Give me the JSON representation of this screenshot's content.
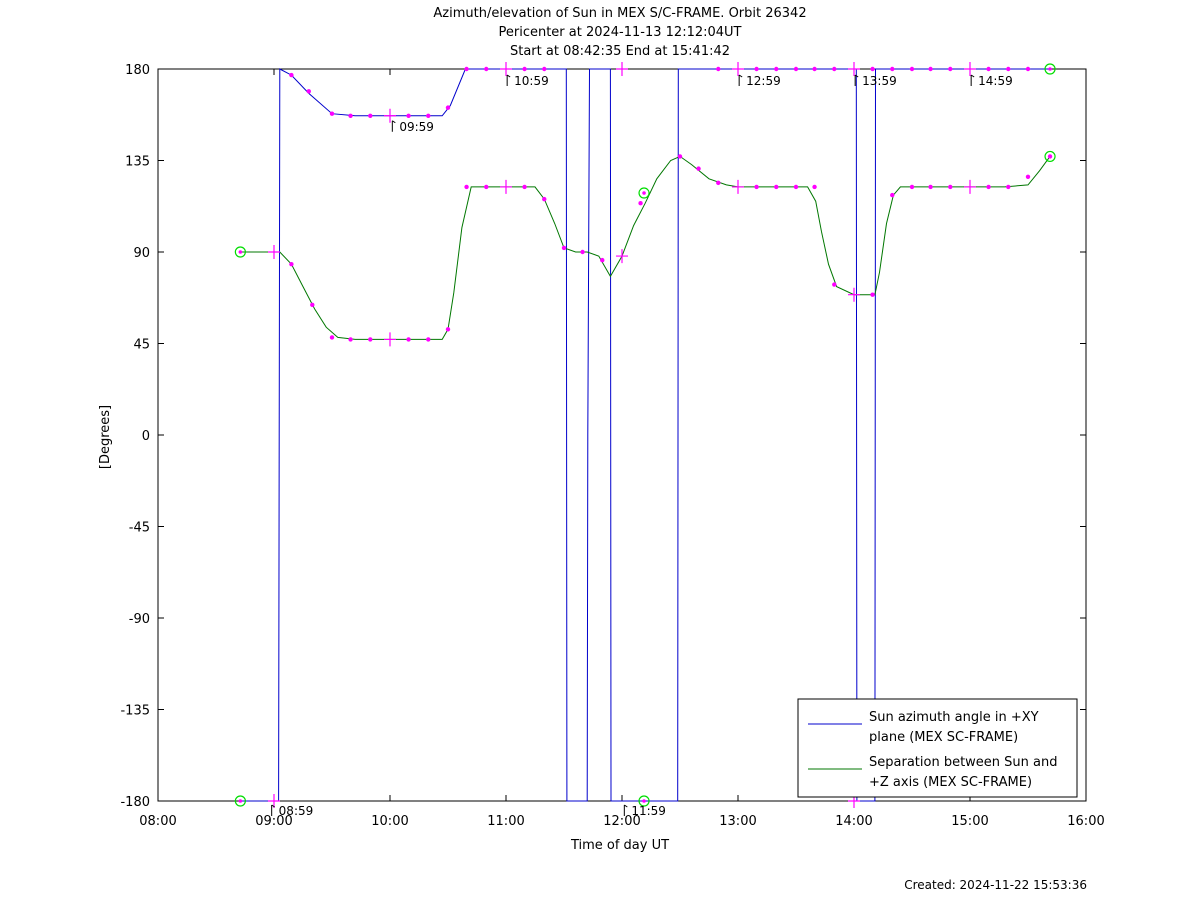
{
  "chart_data": {
    "type": "line",
    "title_lines": [
      "Azimuth/elevation of Sun in MEX S/C-FRAME.  Orbit 26342",
      "Pericenter at 2024-11-13 12:12:04UT",
      "Start at 08:42:35 End at 15:41:42"
    ],
    "xlabel": "Time of day UT",
    "ylabel": "[Degrees]",
    "x_units": "hours of day",
    "xlim": [
      8,
      16
    ],
    "ylim": [
      -180,
      180
    ],
    "x_tick_values": [
      8,
      9,
      10,
      11,
      12,
      13,
      14,
      15,
      16
    ],
    "x_tick_labels": [
      "08:00",
      "09:00",
      "10:00",
      "11:00",
      "12:00",
      "13:00",
      "14:00",
      "15:00",
      "16:00"
    ],
    "y_tick_values": [
      180,
      135,
      90,
      45,
      0,
      -45,
      -90,
      -135,
      -180
    ],
    "y_tick_labels": [
      "180",
      "135",
      "90",
      "45",
      "0",
      "-45",
      "-90",
      "-135",
      "-180"
    ],
    "legend_position": "bottom-right",
    "series": [
      {
        "name_lines": [
          "Sun azimuth angle in +XY",
          "plane (MEX SC-FRAME)"
        ],
        "color": "#0000cc",
        "x": [
          8.71,
          9.04,
          9.045,
          9.05,
          9.15,
          9.3,
          9.5,
          9.7,
          10.0,
          10.3,
          10.45,
          10.52,
          10.65,
          10.8,
          11.0,
          11.3,
          11.52,
          11.525,
          11.7,
          11.705,
          11.72,
          11.9,
          11.905,
          12.0,
          12.2,
          12.48,
          12.485,
          12.6,
          12.8,
          13.0,
          13.3,
          13.6,
          13.8,
          14.02,
          14.025,
          14.18,
          14.185,
          14.2,
          14.4,
          14.6,
          14.8,
          15.0,
          15.2,
          15.4,
          15.6,
          15.69
        ],
        "y": [
          -180,
          -180,
          0,
          180,
          177,
          168,
          158,
          157,
          157,
          157,
          157,
          162,
          180,
          180,
          180,
          180,
          180,
          -180,
          -180,
          0,
          180,
          180,
          -180,
          -180,
          -180,
          -180,
          180,
          180,
          180,
          180,
          180,
          180,
          180,
          180,
          -180,
          -180,
          180,
          180,
          180,
          180,
          180,
          180,
          180,
          180,
          180,
          180
        ]
      },
      {
        "name_lines": [
          "Separation between Sun and",
          "+Z axis (MEX SC-FRAME)"
        ],
        "color": "#007700",
        "x": [
          8.71,
          9.05,
          9.15,
          9.25,
          9.35,
          9.45,
          9.55,
          9.7,
          9.9,
          10.2,
          10.45,
          10.5,
          10.55,
          10.62,
          10.7,
          11.0,
          11.25,
          11.33,
          11.42,
          11.5,
          11.6,
          11.7,
          11.8,
          11.9,
          12.0,
          12.1,
          12.2,
          12.3,
          12.42,
          12.5,
          12.6,
          12.75,
          12.9,
          13.0,
          13.3,
          13.6,
          13.67,
          13.72,
          13.78,
          13.85,
          14.0,
          14.18,
          14.22,
          14.28,
          14.34,
          14.4,
          14.6,
          15.0,
          15.3,
          15.5,
          15.6,
          15.69
        ],
        "y": [
          90,
          90,
          84,
          73,
          62,
          53,
          48,
          47,
          47,
          47,
          47,
          52,
          70,
          102,
          122,
          122,
          122,
          116,
          104,
          92,
          90,
          90,
          88,
          78,
          88,
          103,
          114,
          126,
          135,
          137,
          133,
          126,
          123,
          122,
          122,
          122,
          115,
          100,
          84,
          73,
          69,
          69,
          80,
          104,
          118,
          122,
          122,
          122,
          122,
          123,
          130,
          137
        ]
      }
    ],
    "markers_circle": [
      {
        "x": 8.71,
        "y": 90
      },
      {
        "x": 8.71,
        "y": -180
      },
      {
        "x": 12.19,
        "y": 119
      },
      {
        "x": 12.19,
        "y": -180
      },
      {
        "x": 15.69,
        "y": 180
      },
      {
        "x": 15.69,
        "y": 137
      }
    ],
    "markers_dot": [
      {
        "x": 9.15,
        "y": 177
      },
      {
        "x": 9.3,
        "y": 169
      },
      {
        "x": 9.5,
        "y": 158
      },
      {
        "x": 9.66,
        "y": 157
      },
      {
        "x": 9.83,
        "y": 157
      },
      {
        "x": 10.16,
        "y": 157
      },
      {
        "x": 10.33,
        "y": 157
      },
      {
        "x": 10.5,
        "y": 161
      },
      {
        "x": 10.66,
        "y": 180
      },
      {
        "x": 10.83,
        "y": 180
      },
      {
        "x": 11.16,
        "y": 180
      },
      {
        "x": 11.33,
        "y": 180
      },
      {
        "x": 12.83,
        "y": 180
      },
      {
        "x": 13.16,
        "y": 180
      },
      {
        "x": 13.33,
        "y": 180
      },
      {
        "x": 13.5,
        "y": 180
      },
      {
        "x": 13.66,
        "y": 180
      },
      {
        "x": 13.83,
        "y": 180
      },
      {
        "x": 14.16,
        "y": 180
      },
      {
        "x": 14.33,
        "y": 180
      },
      {
        "x": 14.5,
        "y": 180
      },
      {
        "x": 14.66,
        "y": 180
      },
      {
        "x": 14.83,
        "y": 180
      },
      {
        "x": 15.16,
        "y": 180
      },
      {
        "x": 15.33,
        "y": 180
      },
      {
        "x": 15.5,
        "y": 180
      },
      {
        "x": 9.15,
        "y": 84
      },
      {
        "x": 9.33,
        "y": 64
      },
      {
        "x": 9.5,
        "y": 48
      },
      {
        "x": 9.66,
        "y": 47
      },
      {
        "x": 9.83,
        "y": 47
      },
      {
        "x": 10.16,
        "y": 47
      },
      {
        "x": 10.33,
        "y": 47
      },
      {
        "x": 10.5,
        "y": 52
      },
      {
        "x": 10.66,
        "y": 122
      },
      {
        "x": 10.83,
        "y": 122
      },
      {
        "x": 11.16,
        "y": 122
      },
      {
        "x": 11.33,
        "y": 116
      },
      {
        "x": 11.5,
        "y": 92
      },
      {
        "x": 11.66,
        "y": 90
      },
      {
        "x": 11.83,
        "y": 86
      },
      {
        "x": 12.16,
        "y": 114
      },
      {
        "x": 12.5,
        "y": 137
      },
      {
        "x": 12.66,
        "y": 131
      },
      {
        "x": 12.83,
        "y": 124
      },
      {
        "x": 13.16,
        "y": 122
      },
      {
        "x": 13.33,
        "y": 122
      },
      {
        "x": 13.5,
        "y": 122
      },
      {
        "x": 13.66,
        "y": 122
      },
      {
        "x": 13.83,
        "y": 74
      },
      {
        "x": 14.16,
        "y": 69
      },
      {
        "x": 14.33,
        "y": 118
      },
      {
        "x": 14.5,
        "y": 122
      },
      {
        "x": 14.66,
        "y": 122
      },
      {
        "x": 14.83,
        "y": 122
      },
      {
        "x": 15.16,
        "y": 122
      },
      {
        "x": 15.33,
        "y": 122
      },
      {
        "x": 15.5,
        "y": 127
      },
      {
        "x": 15.69,
        "y": 137
      }
    ],
    "markers_cross": [
      {
        "x": 9.0,
        "y": 90
      },
      {
        "x": 10.0,
        "y": 157
      },
      {
        "x": 10.0,
        "y": 47
      },
      {
        "x": 11.0,
        "y": 180
      },
      {
        "x": 11.0,
        "y": 122
      },
      {
        "x": 12.0,
        "y": 180
      },
      {
        "x": 12.0,
        "y": 88
      },
      {
        "x": 13.0,
        "y": 180
      },
      {
        "x": 13.0,
        "y": 122
      },
      {
        "x": 14.0,
        "y": 180
      },
      {
        "x": 14.0,
        "y": 69
      },
      {
        "x": 15.0,
        "y": 180
      },
      {
        "x": 15.0,
        "y": 122
      },
      {
        "x": 9.0,
        "y": -180
      },
      {
        "x": 14.0,
        "y": -180
      }
    ],
    "annotations": [
      {
        "label": "08:59",
        "x": 8.98,
        "y": -180
      },
      {
        "label": "09:59",
        "x": 10.02,
        "y": 157
      },
      {
        "label": "10:59",
        "x": 11.01,
        "y": 180
      },
      {
        "label": "11:59",
        "x": 12.02,
        "y": -180
      },
      {
        "label": "12:59",
        "x": 13.01,
        "y": 180
      },
      {
        "label": "13:59",
        "x": 14.01,
        "y": 180
      },
      {
        "label": "14:59",
        "x": 15.01,
        "y": 180
      }
    ]
  },
  "footer": {
    "created": "Created: 2024-11-22 15:53:36"
  }
}
